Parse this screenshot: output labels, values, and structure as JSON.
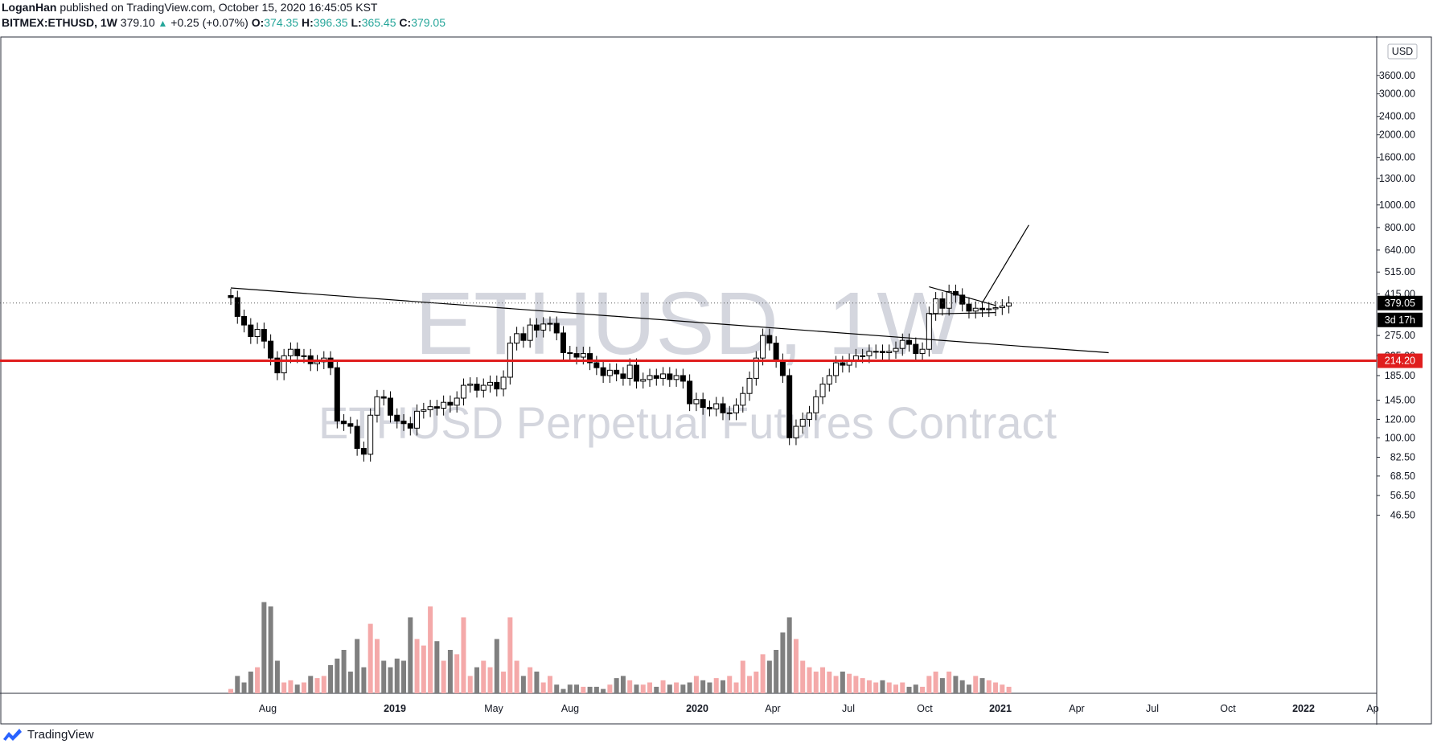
{
  "header": {
    "author": "LoganHan",
    "published_text": "published on TradingView.com, October 15, 2020 16:45:05 KST",
    "symbol": "BITMEX:ETHUSD, 1W",
    "last": "379.10",
    "change": "+0.25 (+0.07%)",
    "o_label": "O:",
    "o_value": "374.35",
    "h_label": "H:",
    "h_value": "396.35",
    "l_label": "L:",
    "l_value": "365.45",
    "c_label": "C:",
    "c_value": "379.05"
  },
  "watermark": {
    "title": "ETHUSD, 1W",
    "subtitle": "ETHUSD Perpetual Futures Contract"
  },
  "footer": {
    "brand": "TradingView"
  },
  "colors": {
    "up": "#ffffff",
    "down": "#000000",
    "vol_up": "#f4a9a9",
    "vol_down": "#7f7f7f",
    "support": "#e01e1e",
    "accent": "#26a69a"
  },
  "chart_data": {
    "type": "candlestick",
    "timeframe": "1W",
    "y_scale": "log",
    "y_ticks": [
      "3600.00",
      "3000.00",
      "2400.00",
      "2000.00",
      "1600.00",
      "1300.00",
      "1000.00",
      "800.00",
      "640.00",
      "515.00",
      "415.00",
      "275.00",
      "225.00",
      "185.00",
      "145.00",
      "120.00",
      "100.00",
      "82.50",
      "68.50",
      "56.50",
      "46.50"
    ],
    "y_unit": "USD",
    "x_ticks": [
      "Aug",
      "2019",
      "May",
      "Aug",
      "2020",
      "Apr",
      "Jul",
      "Oct",
      "2021",
      "Apr",
      "Jul",
      "Oct",
      "2022",
      "Ap"
    ],
    "last_price_label": "379.05",
    "countdown_label": "3d 17h",
    "support_label": "214.20",
    "support_level": 214.2,
    "last_price": 379.05,
    "closes": [
      400,
      332,
      305,
      272,
      292,
      260,
      220,
      190,
      225,
      240,
      225,
      225,
      208,
      212,
      220,
      200,
      118,
      115,
      112,
      90,
      85,
      125,
      150,
      148,
      125,
      118,
      115,
      110,
      130,
      132,
      136,
      134,
      142,
      138,
      148,
      168,
      170,
      160,
      168,
      173,
      162,
      182,
      255,
      280,
      262,
      305,
      290,
      308,
      310,
      282,
      232,
      230,
      222,
      230,
      210,
      200,
      185,
      195,
      188,
      180,
      205,
      175,
      178,
      185,
      180,
      188,
      178,
      185,
      175,
      140,
      146,
      135,
      133,
      140,
      128,
      128,
      138,
      155,
      180,
      220,
      275,
      255,
      215,
      185,
      100,
      112,
      120,
      128,
      150,
      170,
      185,
      210,
      205,
      215,
      225,
      225,
      235,
      235,
      232,
      235,
      242,
      262,
      252,
      230,
      240,
      342,
      395,
      360,
      425,
      410,
      375,
      350,
      360,
      355,
      358,
      362,
      368,
      379
    ],
    "volume_pct": [
      2,
      8,
      5,
      10,
      12,
      42,
      40,
      15,
      5,
      6,
      4,
      5,
      8,
      7,
      8,
      13,
      16,
      20,
      10,
      25,
      12,
      32,
      25,
      15,
      12,
      16,
      15,
      35,
      25,
      22,
      40,
      24,
      15,
      20,
      18,
      35,
      8,
      12,
      15,
      12,
      25,
      10,
      35,
      15,
      8,
      12,
      10,
      5,
      8,
      4,
      2,
      4,
      4,
      3,
      3,
      3,
      2,
      4,
      7,
      8,
      6,
      4,
      4,
      5,
      3,
      6,
      4,
      5,
      4,
      5,
      8,
      6,
      5,
      7,
      6,
      8,
      5,
      15,
      8,
      10,
      18,
      15,
      20,
      28,
      35,
      25,
      15,
      12,
      10,
      12,
      10,
      8,
      10,
      9,
      8,
      7,
      6,
      5,
      6,
      5,
      4,
      5,
      3,
      4,
      3,
      8,
      10,
      7,
      10,
      8,
      6,
      4,
      8,
      7,
      6,
      5,
      4,
      3
    ],
    "trendline_desc": {
      "from": {
        "x_index": 0,
        "price": 440
      },
      "to": {
        "x_index": 132,
        "price": 232
      }
    },
    "triangle_upper": {
      "from": {
        "x_index": 105,
        "price": 445
      },
      "to": {
        "x_index": 115,
        "price": 370
      }
    },
    "triangle_lower": {
      "from": {
        "x_index": 105,
        "price": 340
      },
      "to": {
        "x_index": 115,
        "price": 345
      }
    },
    "projection": {
      "from": {
        "x_index": 113,
        "price": 380
      },
      "to": {
        "x_index": 120,
        "price": 820
      }
    }
  }
}
